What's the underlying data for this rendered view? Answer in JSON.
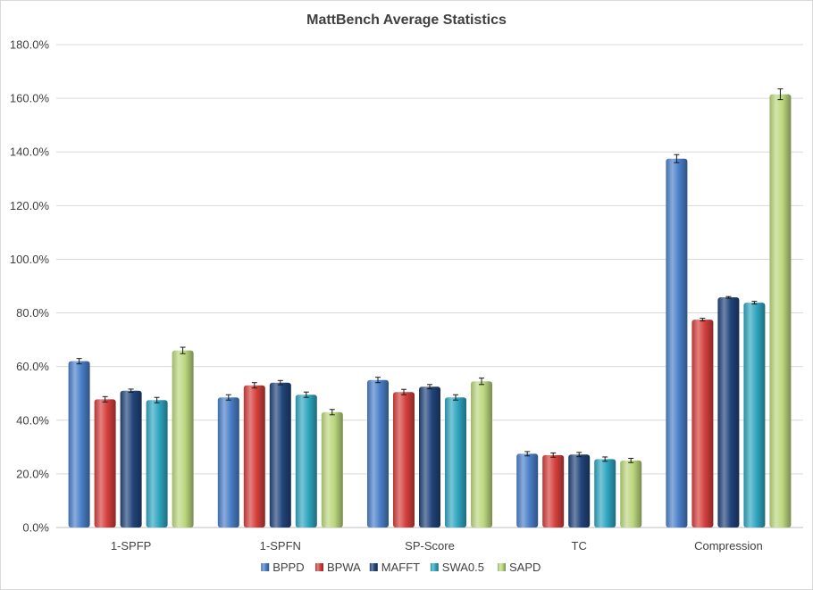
{
  "chart_data": {
    "type": "bar",
    "title": "MattBench Average Statistics",
    "xlabel": "",
    "ylabel": "",
    "ylim": [
      0,
      180
    ],
    "ytick_labels": [
      "0.0%",
      "20.0%",
      "40.0%",
      "60.0%",
      "80.0%",
      "100.0%",
      "120.0%",
      "140.0%",
      "160.0%",
      "180.0%"
    ],
    "categories": [
      "1-SPFP",
      "1-SPFN",
      "SP-Score",
      "TC",
      "Compression"
    ],
    "series": [
      {
        "name": "BPPD",
        "color": "#4a7fc9",
        "values": [
          62.0,
          48.5,
          55.0,
          27.5,
          137.5
        ],
        "errors": [
          1.0,
          1.0,
          1.0,
          0.8,
          1.5
        ]
      },
      {
        "name": "BPWA",
        "color": "#d43f3c",
        "values": [
          47.8,
          53.0,
          50.5,
          27.0,
          77.5
        ],
        "errors": [
          1.0,
          1.0,
          1.0,
          0.8,
          0.5
        ]
      },
      {
        "name": "MAFFT",
        "color": "#21447a",
        "values": [
          51.0,
          54.0,
          52.5,
          27.2,
          85.8
        ],
        "errors": [
          0.6,
          0.8,
          0.8,
          0.8,
          0.3
        ]
      },
      {
        "name": "SWA0.5",
        "color": "#2fa6c0",
        "values": [
          47.5,
          49.5,
          48.5,
          25.5,
          83.8
        ],
        "errors": [
          1.0,
          1.0,
          1.0,
          0.8,
          0.5
        ]
      },
      {
        "name": "SAPD",
        "color": "#bcd77e",
        "values": [
          66.0,
          43.0,
          54.5,
          25.0,
          161.5
        ],
        "errors": [
          1.2,
          1.0,
          1.2,
          0.8,
          2.0
        ]
      }
    ],
    "grid": true,
    "legend_position": "bottom"
  }
}
